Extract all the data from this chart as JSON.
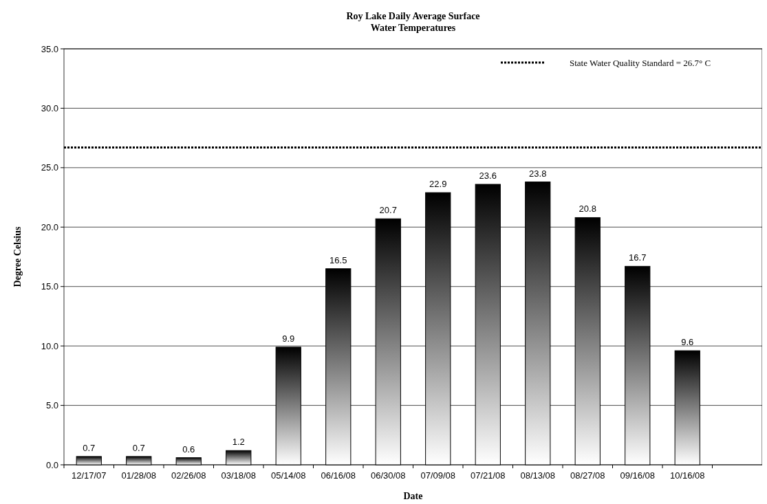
{
  "chart_data": {
    "type": "bar",
    "title": "Roy Lake Daily Average Surface Water Temperatures",
    "xlabel": "Date",
    "ylabel": "Degree Celsius",
    "categories": [
      "12/17/07",
      "01/28/08",
      "02/26/08",
      "03/18/08",
      "05/14/08",
      "06/16/08",
      "06/30/08",
      "07/09/08",
      "07/21/08",
      "08/13/08",
      "08/27/08",
      "09/16/08",
      "10/16/08",
      null
    ],
    "values": [
      0.7,
      0.7,
      0.6,
      1.2,
      9.9,
      16.5,
      20.7,
      22.9,
      23.6,
      23.8,
      20.8,
      16.7,
      9.6,
      null
    ],
    "color": "#000000",
    "data_labels": true,
    "ylim": [
      0,
      35
    ],
    "yticks": [
      {
        "value": 0,
        "label": "0.0"
      },
      {
        "value": 5,
        "label": "5.0"
      },
      {
        "value": 10,
        "label": "10.0"
      },
      {
        "value": 15,
        "label": "15.0"
      },
      {
        "value": 20,
        "label": "20.0"
      },
      {
        "value": 25,
        "label": "25.0"
      },
      {
        "value": 30,
        "label": "30.0"
      },
      {
        "value": 35,
        "label": "35.0"
      }
    ],
    "grid": "y",
    "legend": "top right",
    "ref_lines": [
      {
        "axis": "y",
        "value": 26.7,
        "label": "State Water Quality Standard = 26.7° C",
        "color": "#000000",
        "line_style": "dotted"
      }
    ]
  }
}
